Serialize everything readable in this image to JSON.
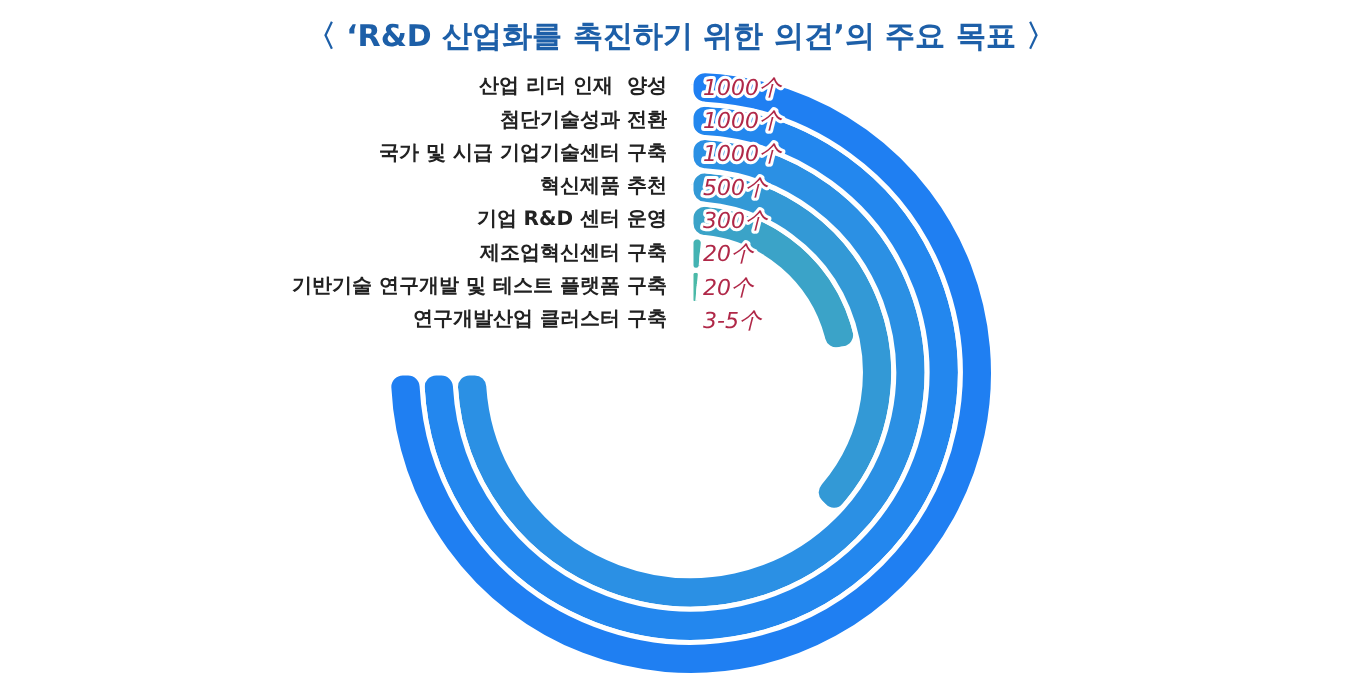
{
  "chart_data": {
    "type": "other",
    "title": "〈 ‘R&D 산업화를 촉진하기 위한 의견’의 주요 목표 〉",
    "categories": [
      "산업 리더 인재  양성",
      "첨단기술성과 전환",
      "국가 및 시급 기업기술센터 구축",
      "혁신제품 추천",
      "기업 R&D 센터 운영",
      "제조업혁신센터 구축",
      "기반기술 연구개발 및 테스트 플랫폼 구축",
      "연구개발산업 클러스터 구축"
    ],
    "values": [
      1000,
      1000,
      1000,
      500,
      300,
      20,
      20,
      null
    ],
    "value_labels": [
      "1000个",
      "1000个",
      "1000个",
      "500个",
      "300个",
      "20个",
      "20个",
      "3-5个"
    ],
    "colors": [
      "#1f7ff2",
      "#2387ee",
      "#2b90e4",
      "#3399d6",
      "#3ba3c8",
      "#44b3b3",
      "#4bb9a8",
      "#52bea0"
    ]
  }
}
